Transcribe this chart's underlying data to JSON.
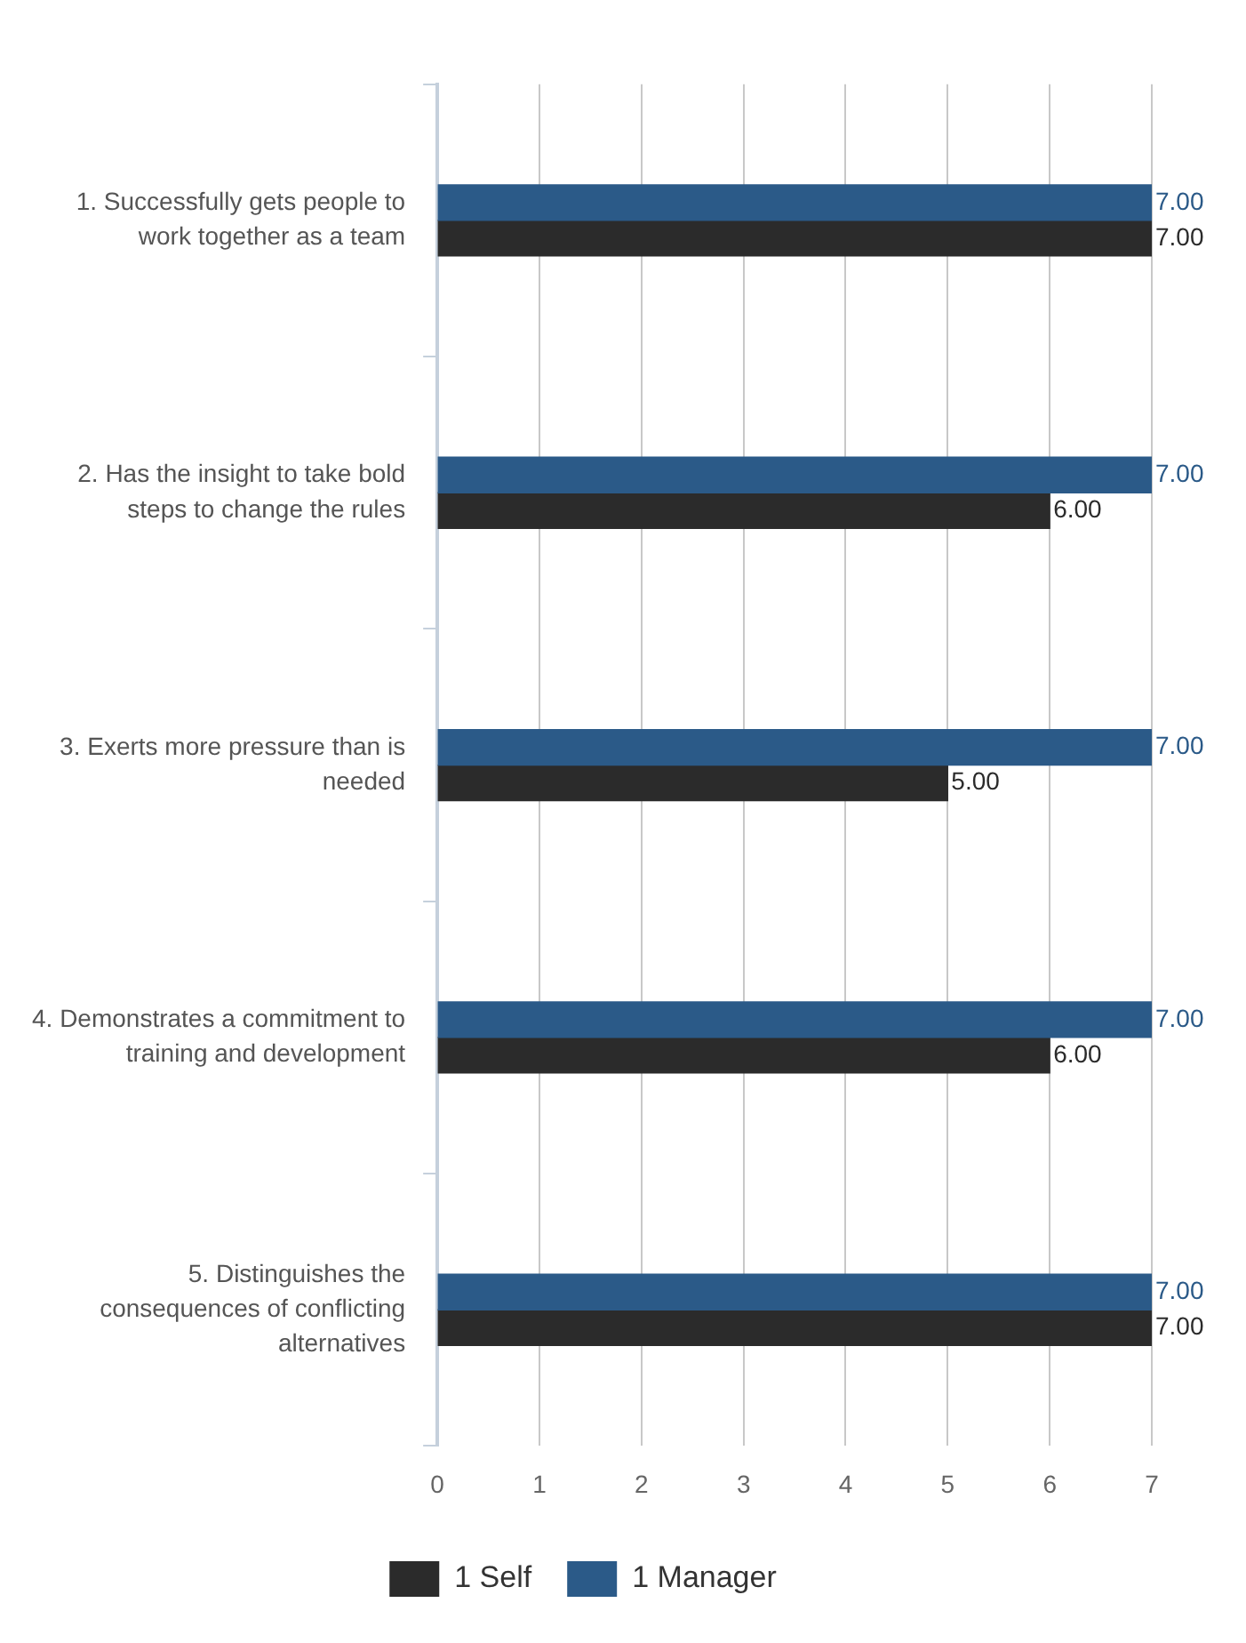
{
  "chart_data": {
    "type": "bar",
    "orientation": "horizontal",
    "categories": [
      "1. Successfully gets people to work together as a team",
      "2. Has the insight to take bold steps to change the rules",
      "3. Exerts more pressure than is needed",
      "4. Demonstrates a commitment to training and development",
      "5. Distinguishes the consequences of conflicting alternatives"
    ],
    "series": [
      {
        "name": "1 Manager",
        "color": "#2b5a88",
        "values": [
          7,
          7,
          7,
          7,
          7
        ],
        "value_labels": [
          "7.00",
          "7.00",
          "7.00",
          "7.00",
          "7.00"
        ]
      },
      {
        "name": "1 Self",
        "color": "#2b2b2b",
        "values": [
          7,
          6,
          5,
          6,
          7
        ],
        "value_labels": [
          "7.00",
          "6.00",
          "5.00",
          "6.00",
          "7.00"
        ]
      }
    ],
    "xlim": [
      0,
      7
    ],
    "xticks": [
      0,
      1,
      2,
      3,
      4,
      5,
      6,
      7
    ],
    "grid": "x",
    "legend": "bottom"
  }
}
